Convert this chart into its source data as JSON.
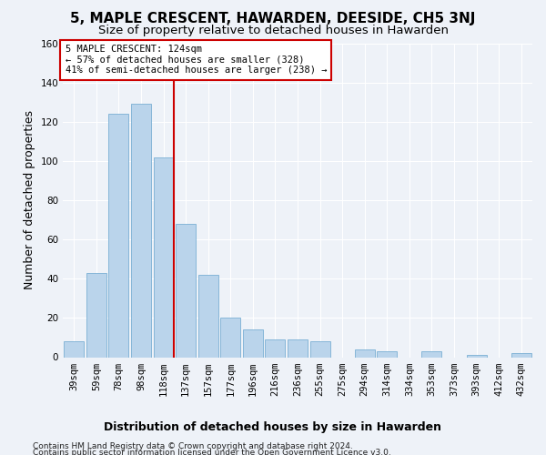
{
  "title": "5, MAPLE CRESCENT, HAWARDEN, DEESIDE, CH5 3NJ",
  "subtitle": "Size of property relative to detached houses in Hawarden",
  "xlabel": "Distribution of detached houses by size in Hawarden",
  "ylabel": "Number of detached properties",
  "categories": [
    "39sqm",
    "59sqm",
    "78sqm",
    "98sqm",
    "118sqm",
    "137sqm",
    "157sqm",
    "177sqm",
    "196sqm",
    "216sqm",
    "236sqm",
    "255sqm",
    "275sqm",
    "294sqm",
    "314sqm",
    "334sqm",
    "353sqm",
    "373sqm",
    "393sqm",
    "412sqm",
    "432sqm"
  ],
  "values": [
    8,
    43,
    124,
    129,
    102,
    68,
    42,
    20,
    14,
    9,
    9,
    8,
    0,
    4,
    3,
    0,
    3,
    0,
    1,
    0,
    2
  ],
  "bar_color": "#bad4eb",
  "bar_edge_color": "#7aafd4",
  "vline_color": "#cc0000",
  "ylim": [
    0,
    160
  ],
  "yticks": [
    0,
    20,
    40,
    60,
    80,
    100,
    120,
    140,
    160
  ],
  "annotation_title": "5 MAPLE CRESCENT: 124sqm",
  "annotation_line1": "← 57% of detached houses are smaller (328)",
  "annotation_line2": "41% of semi-detached houses are larger (238) →",
  "annotation_box_color": "#ffffff",
  "annotation_box_edge": "#cc0000",
  "footer_line1": "Contains HM Land Registry data © Crown copyright and database right 2024.",
  "footer_line2": "Contains public sector information licensed under the Open Government Licence v3.0.",
  "background_color": "#eef2f8",
  "grid_color": "#ffffff",
  "title_fontsize": 11,
  "subtitle_fontsize": 9.5,
  "axis_label_fontsize": 9,
  "tick_fontsize": 7.5,
  "footer_fontsize": 6.5,
  "annotation_fontsize": 7.5
}
